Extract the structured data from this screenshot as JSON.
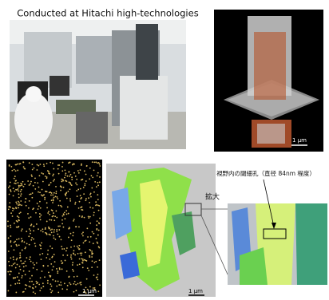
{
  "caption": "Conducted at Hitachi high-technologies",
  "panels": {
    "tomography": {
      "scale_bar": "1 μm"
    },
    "particles": {
      "scale_bar": "1 μm"
    },
    "pores": {
      "scale_bar": "1 μm",
      "zoom_label": "拡大"
    },
    "zoom": {
      "annotation": "視野内の閾細孔（直径 84nm 程度）"
    }
  }
}
